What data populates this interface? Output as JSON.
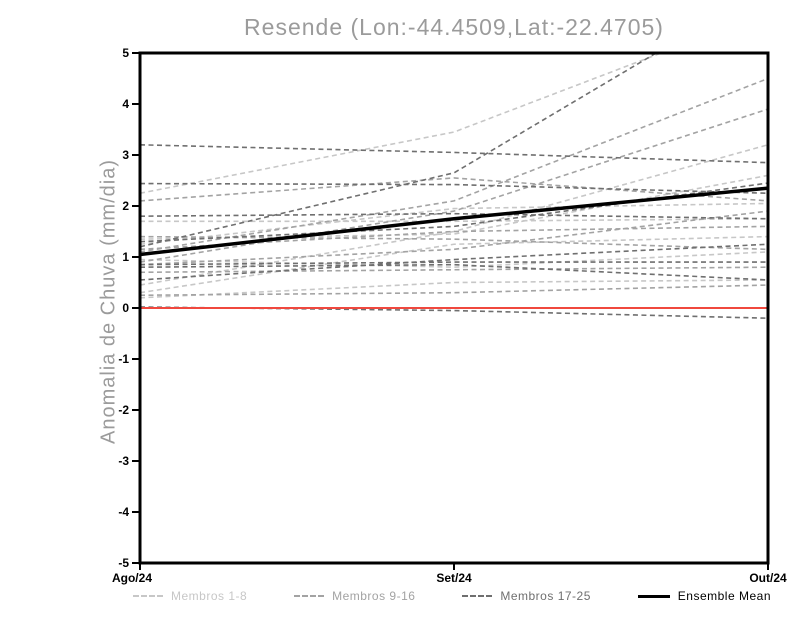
{
  "title": "Resende (Lon:-44.4509,Lat:-22.4705)",
  "chart_data": {
    "type": "line",
    "title": "Resende (Lon:-44.4509,Lat:-22.4705)",
    "xlabel": "",
    "ylabel": "Anomalia de Chuva (mm/dia)",
    "x_categories": [
      "Ago/24",
      "Set/24",
      "Out/24"
    ],
    "ylim": [
      -5,
      5
    ],
    "ytick_step": 1,
    "grid": false,
    "legend_position": "bottom",
    "zero_line": {
      "value": 0,
      "color": "#f0483e"
    },
    "groups": [
      {
        "name": "Membros 1-8",
        "color": "#c7c7c7"
      },
      {
        "name": "Membros 9-16",
        "color": "#a3a3a3"
      },
      {
        "name": "Membros 17-25",
        "color": "#6f6f6f"
      }
    ],
    "members": [
      {
        "group": 0,
        "values": [
          2.25,
          3.45,
          5.8
        ]
      },
      {
        "group": 0,
        "values": [
          0.3,
          1.25,
          1.4
        ]
      },
      {
        "group": 0,
        "values": [
          0.2,
          0.5,
          0.55
        ]
      },
      {
        "group": 0,
        "values": [
          1.35,
          1.45,
          2.6
        ]
      },
      {
        "group": 0,
        "values": [
          0.95,
          0.8,
          1.1
        ]
      },
      {
        "group": 0,
        "values": [
          1.7,
          1.7,
          1.75
        ]
      },
      {
        "group": 0,
        "values": [
          0.45,
          1.5,
          3.2
        ]
      },
      {
        "group": 0,
        "values": [
          1.25,
          1.95,
          2.05
        ]
      },
      {
        "group": 1,
        "values": [
          1.1,
          2.1,
          4.5
        ]
      },
      {
        "group": 1,
        "values": [
          0.9,
          1.9,
          3.9
        ]
      },
      {
        "group": 1,
        "values": [
          1.15,
          1.5,
          1.6
        ]
      },
      {
        "group": 1,
        "values": [
          0.7,
          0.75,
          0.8
        ]
      },
      {
        "group": 1,
        "values": [
          1.4,
          1.35,
          1.15
        ]
      },
      {
        "group": 1,
        "values": [
          0.25,
          0.3,
          0.45
        ]
      },
      {
        "group": 1,
        "values": [
          2.1,
          2.55,
          2.1
        ]
      },
      {
        "group": 1,
        "values": [
          0.85,
          1.15,
          1.9
        ]
      },
      {
        "group": 2,
        "values": [
          3.2,
          3.05,
          2.85
        ]
      },
      {
        "group": 2,
        "values": [
          2.44,
          2.42,
          2.25
        ]
      },
      {
        "group": 2,
        "values": [
          1.8,
          1.85,
          1.75
        ]
      },
      {
        "group": 2,
        "values": [
          1.2,
          2.65,
          6.3
        ]
      },
      {
        "group": 2,
        "values": [
          0.85,
          0.9,
          0.9
        ]
      },
      {
        "group": 2,
        "values": [
          0.8,
          0.85,
          0.55
        ]
      },
      {
        "group": 2,
        "values": [
          0.02,
          -0.05,
          -0.2
        ]
      },
      {
        "group": 2,
        "values": [
          1.3,
          1.6,
          2.45
        ]
      },
      {
        "group": 2,
        "values": [
          0.55,
          0.95,
          1.25
        ]
      }
    ],
    "mean": {
      "name": "Ensemble Mean",
      "color": "#000000",
      "values": [
        1.05,
        1.75,
        2.35
      ]
    }
  }
}
